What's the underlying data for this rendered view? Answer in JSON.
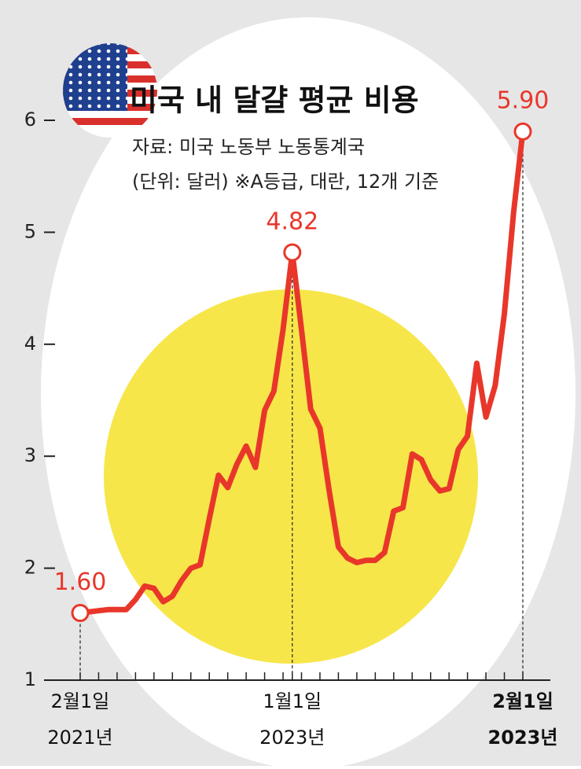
{
  "chart_data": {
    "type": "line",
    "title": "미국 내 달걀 평균 비용",
    "subtitle": [
      "자료: 미국 노동부 노동통계국",
      "(단위: 달러) ※A등급, 대란, 12개 기준"
    ],
    "categories": [
      [
        "2월1일",
        "2021년"
      ],
      null,
      null,
      null,
      null,
      null,
      null,
      null,
      null,
      null,
      null,
      null,
      null,
      null,
      null,
      null,
      null,
      null,
      null,
      null,
      null,
      null,
      null,
      [
        "1월1일",
        "2023년"
      ],
      null,
      null,
      null,
      null,
      null,
      null,
      null,
      null,
      null,
      null,
      null,
      null,
      null,
      null,
      null,
      null,
      null,
      null,
      null,
      null,
      null,
      null,
      null,
      null,
      [
        "2월1일",
        "2023년"
      ]
    ],
    "series": [
      {
        "color": "#e8372a",
        "values": [
          1.6,
          1.61,
          1.62,
          1.63,
          1.63,
          1.63,
          1.72,
          1.84,
          1.82,
          1.7,
          1.75,
          1.89,
          2.0,
          2.03,
          2.44,
          2.83,
          2.72,
          2.93,
          3.09,
          2.9,
          3.41,
          3.58,
          4.13,
          4.82,
          4.13,
          3.42,
          3.25,
          2.69,
          2.19,
          2.09,
          2.05,
          2.07,
          2.07,
          2.14,
          2.51,
          2.54,
          3.02,
          2.97,
          2.79,
          2.69,
          2.71,
          3.06,
          3.18,
          3.83,
          3.35,
          3.63,
          4.27,
          5.18,
          5.9
        ],
        "value_labels": [
          "1.60",
          null,
          null,
          null,
          null,
          null,
          null,
          null,
          null,
          null,
          null,
          null,
          null,
          null,
          null,
          null,
          null,
          null,
          null,
          null,
          null,
          null,
          null,
          "4.82",
          null,
          null,
          null,
          null,
          null,
          null,
          null,
          null,
          null,
          null,
          null,
          null,
          null,
          null,
          null,
          null,
          null,
          null,
          null,
          null,
          null,
          null,
          null,
          null,
          "5.90"
        ]
      }
    ],
    "ylim": [
      1,
      6
    ],
    "yticks": [
      1,
      2,
      3,
      4,
      5,
      6
    ]
  }
}
